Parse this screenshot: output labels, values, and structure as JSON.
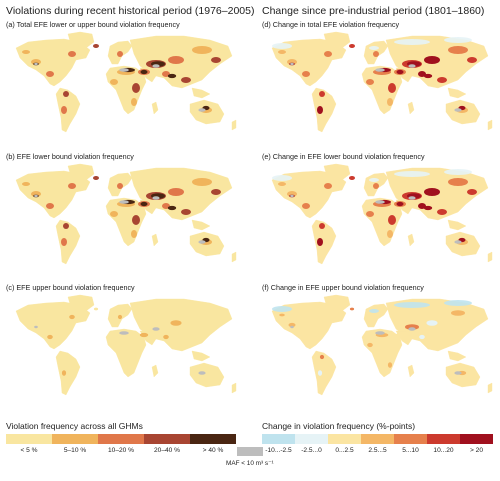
{
  "headings": {
    "left": "Violations during recent historical period (1976–2005)",
    "right": "Change since pre-industrial period (1801–1860)"
  },
  "panels": [
    {
      "id": "a",
      "label": "(a) Total EFE lower or upper bound violation frequency",
      "palette": "freq",
      "intensity": 3
    },
    {
      "id": "b",
      "label": "(b) EFE lower bound violation frequency",
      "palette": "freq",
      "intensity": 3
    },
    {
      "id": "c",
      "label": "(c) EFE upper bound violation frequency",
      "palette": "freq",
      "intensity": 1
    },
    {
      "id": "d",
      "label": "(d) Change in total EFE violation frequency",
      "palette": "change",
      "intensity": 3
    },
    {
      "id": "e",
      "label": "(e) Change in EFE lower bound violation frequency",
      "palette": "change",
      "intensity": 3
    },
    {
      "id": "f",
      "label": "(f) Change in EFE upper bound violation frequency",
      "palette": "change",
      "intensity": 1
    }
  ],
  "legend_frequency": {
    "title": "Violation frequency across all GHMs",
    "classes": [
      {
        "label": "< 5 %",
        "color": "#f9e6a0"
      },
      {
        "label": "5–10 %",
        "color": "#f0b45c"
      },
      {
        "label": "10–20 %",
        "color": "#e0774a"
      },
      {
        "label": "20–40 %",
        "color": "#a84532"
      },
      {
        "label": "> 40 %",
        "color": "#4a2612"
      }
    ]
  },
  "legend_change": {
    "title": "Change in violation frequency (%-points)",
    "classes": [
      {
        "label": "-10...-2.5",
        "color": "#bfe3ee"
      },
      {
        "label": "-2.5...0",
        "color": "#e6f3f6"
      },
      {
        "label": "0...2.5",
        "color": "#fbe5a2"
      },
      {
        "label": "2.5...5",
        "color": "#f4b766"
      },
      {
        "label": "5...10",
        "color": "#e6804c"
      },
      {
        "label": "10...20",
        "color": "#cc3a2e"
      },
      {
        "label": "> 20",
        "color": "#a0101e"
      }
    ]
  },
  "maf": {
    "label": "MAF < 10 m³ s⁻¹",
    "color": "#bdbdbd"
  }
}
